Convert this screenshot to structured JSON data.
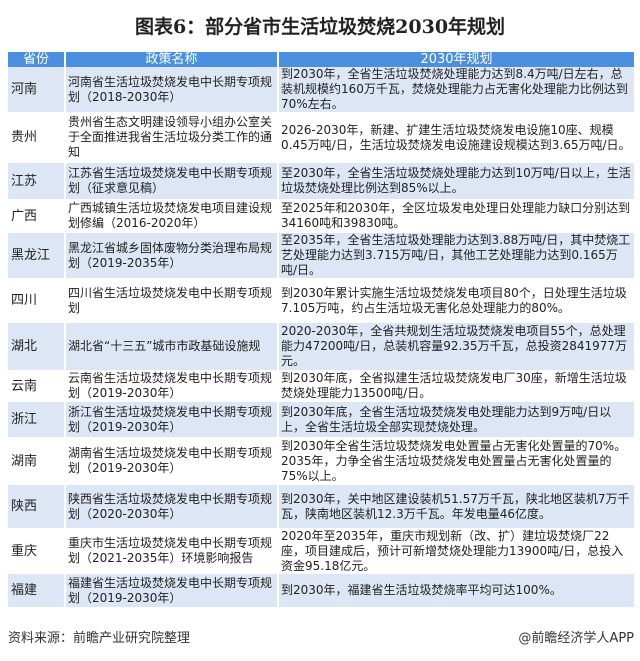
{
  "title": "图表6：部分省市生活垃圾焚烧2030年规划",
  "headers": [
    "省份",
    "政策名称",
    "2030年规划"
  ],
  "rows": [
    {
      "province": "河南",
      "policy": "河南省生活垃圾焚烧发电中长期专项规划（2018-2030年）",
      "plan": "到2030年，全省生活垃圾焚烧处理能力达到8.4万吨/日左右，总装机规模约160万千瓦，焚烧处理能力占无害化处理能力比例达到70%左右。"
    },
    {
      "province": "贵州",
      "policy": "贵州省生态文明建设领导小组办公室关于全面推进我省生活垃圾分类工作的通知",
      "plan": "2026-2030年，新建、扩建生活垃圾焚烧发电设施10座、规模0.45万吨/日，生活垃圾焚烧发电设施建设规模达到3.65万吨/日。"
    },
    {
      "province": "江苏",
      "policy": "江苏省生活垃圾焚烧发电中长期专项规划（征求意见稿）",
      "plan": "至2030年，全省生活垃圾焚烧处理能力达到10万吨/日以上，生活垃圾焚烧处理比例达到85%以上。"
    },
    {
      "province": "广西",
      "policy": "广西城镇生活垃圾焚烧发电项目建设规划修编（2016-2020年）",
      "plan": "至2025年和2030年，全区垃圾发电处理日处理能力缺口分别达到34160吨和39830吨。"
    },
    {
      "province": "黑龙江",
      "policy": "黑龙江省城乡固体废物分类治理布局规划（2019-2035年）",
      "plan": "至2035年，全省生活垃圾处理能力达到3.88万吨/日，其中焚烧工艺处理能力达到3.715万吨/日，其他工艺处理能力达到0.165万吨/日。"
    },
    {
      "province": "四川",
      "policy": "四川省生活垃圾焚烧发电中长期专项规划",
      "plan": "到2030年累计实施生活垃圾焚烧发电项目80个，日处理生活垃圾7.105万吨，约占生活垃圾无害化总处理能力的80%。"
    },
    {
      "province": "湖北",
      "policy": "湖北省“十三五”城市市政基础设施规",
      "plan": "2020-2030年，全省共规划生活垃圾焚烧发电项目55个，总处理能力47200吨/日，总装机容量92.35万千瓦，总投资2841977万元。"
    },
    {
      "province": "云南",
      "policy": "云南省生活垃圾焚烧发电中长期专项规划（2019-2030年）",
      "plan": "到2030年底，全省拟建生活垃圾焚烧发电厂30座，新增生活垃圾焚烧处理能力13500吨/日。"
    },
    {
      "province": "浙江",
      "policy": "浙江省生活垃圾焚烧发电中长期专项规划（2019-2030年）",
      "plan": "到2030年底，全省生活垃圾焚烧发电处理能力达到9万吨/日以上，全省生活垃圾全部实现焚烧处理。"
    },
    {
      "province": "湖南",
      "policy": "湖南省生活垃圾焚烧发电中长期专项规划（2019-2030年）",
      "plan": "到2030年全省生活垃圾焚烧发电处置量占无害化处置量的70%。2035年，力争全省生活垃圾焚烧发电处置量占无害化处置量的75%以上。"
    },
    {
      "province": "陕西",
      "policy": "陕西省生活垃圾焚烧发电中长期专项规划（2020-2030年）",
      "plan": "到2030年，关中地区建设装机51.57万千瓦，陕北地区装机7万千瓦，陕南地区装机12.3万千瓦。年发电量46亿度。"
    },
    {
      "province": "重庆",
      "policy": "重庆市生活垃圾焚烧发电中长期专项规划（2021-2035年）环境影响报告",
      "plan": "2020年至2035年，重庆市规划新（改、扩）建垃圾焚烧厂22座，项目建成后，预计可新增焚烧处理能力13900吨/日，总投入资金95.18亿元。"
    },
    {
      "province": "福建",
      "policy": "福建省生活垃圾焚烧发电中长期专项规划（2019-2030年）",
      "plan": "到2030年，福建省生活垃圾焚烧率平均可达100%。"
    }
  ],
  "source": "资料来源：前瞻产业研究院整理",
  "brand": "@前瞻经济学人APP",
  "colors": {
    "header": "#4a8fe0",
    "stripe": "#dce6f4"
  }
}
